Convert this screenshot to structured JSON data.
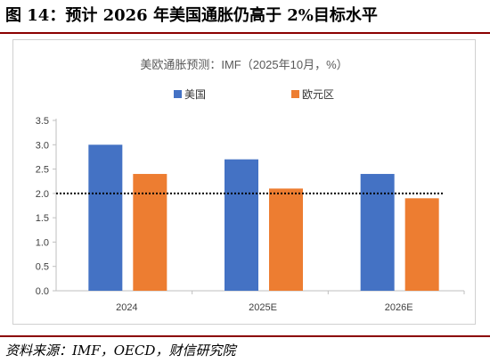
{
  "figure": {
    "title": "图 14：预计 2026 年美国通胀仍高于 2%目标水平",
    "source": "资料来源：IMF，OECD，财信研究院"
  },
  "chart_data": {
    "type": "bar",
    "title": "美欧通胀预测：IMF（2025年10月，%）",
    "categories": [
      "2024",
      "2025E",
      "2026E"
    ],
    "series": [
      {
        "name": "美国",
        "values": [
          3.0,
          2.7,
          2.4
        ],
        "color": "#4472c4"
      },
      {
        "name": "欧元区",
        "values": [
          2.4,
          2.1,
          1.9
        ],
        "color": "#ed7d31"
      }
    ],
    "ylim": [
      0,
      3.5
    ],
    "yticks": [
      "0.0",
      "0.5",
      "1.0",
      "1.5",
      "2.0",
      "2.5",
      "3.0",
      "3.5"
    ],
    "reference_line": {
      "value": 2.0,
      "style": "dotted",
      "color": "#000000"
    },
    "legend_position": "top",
    "grid": false
  }
}
